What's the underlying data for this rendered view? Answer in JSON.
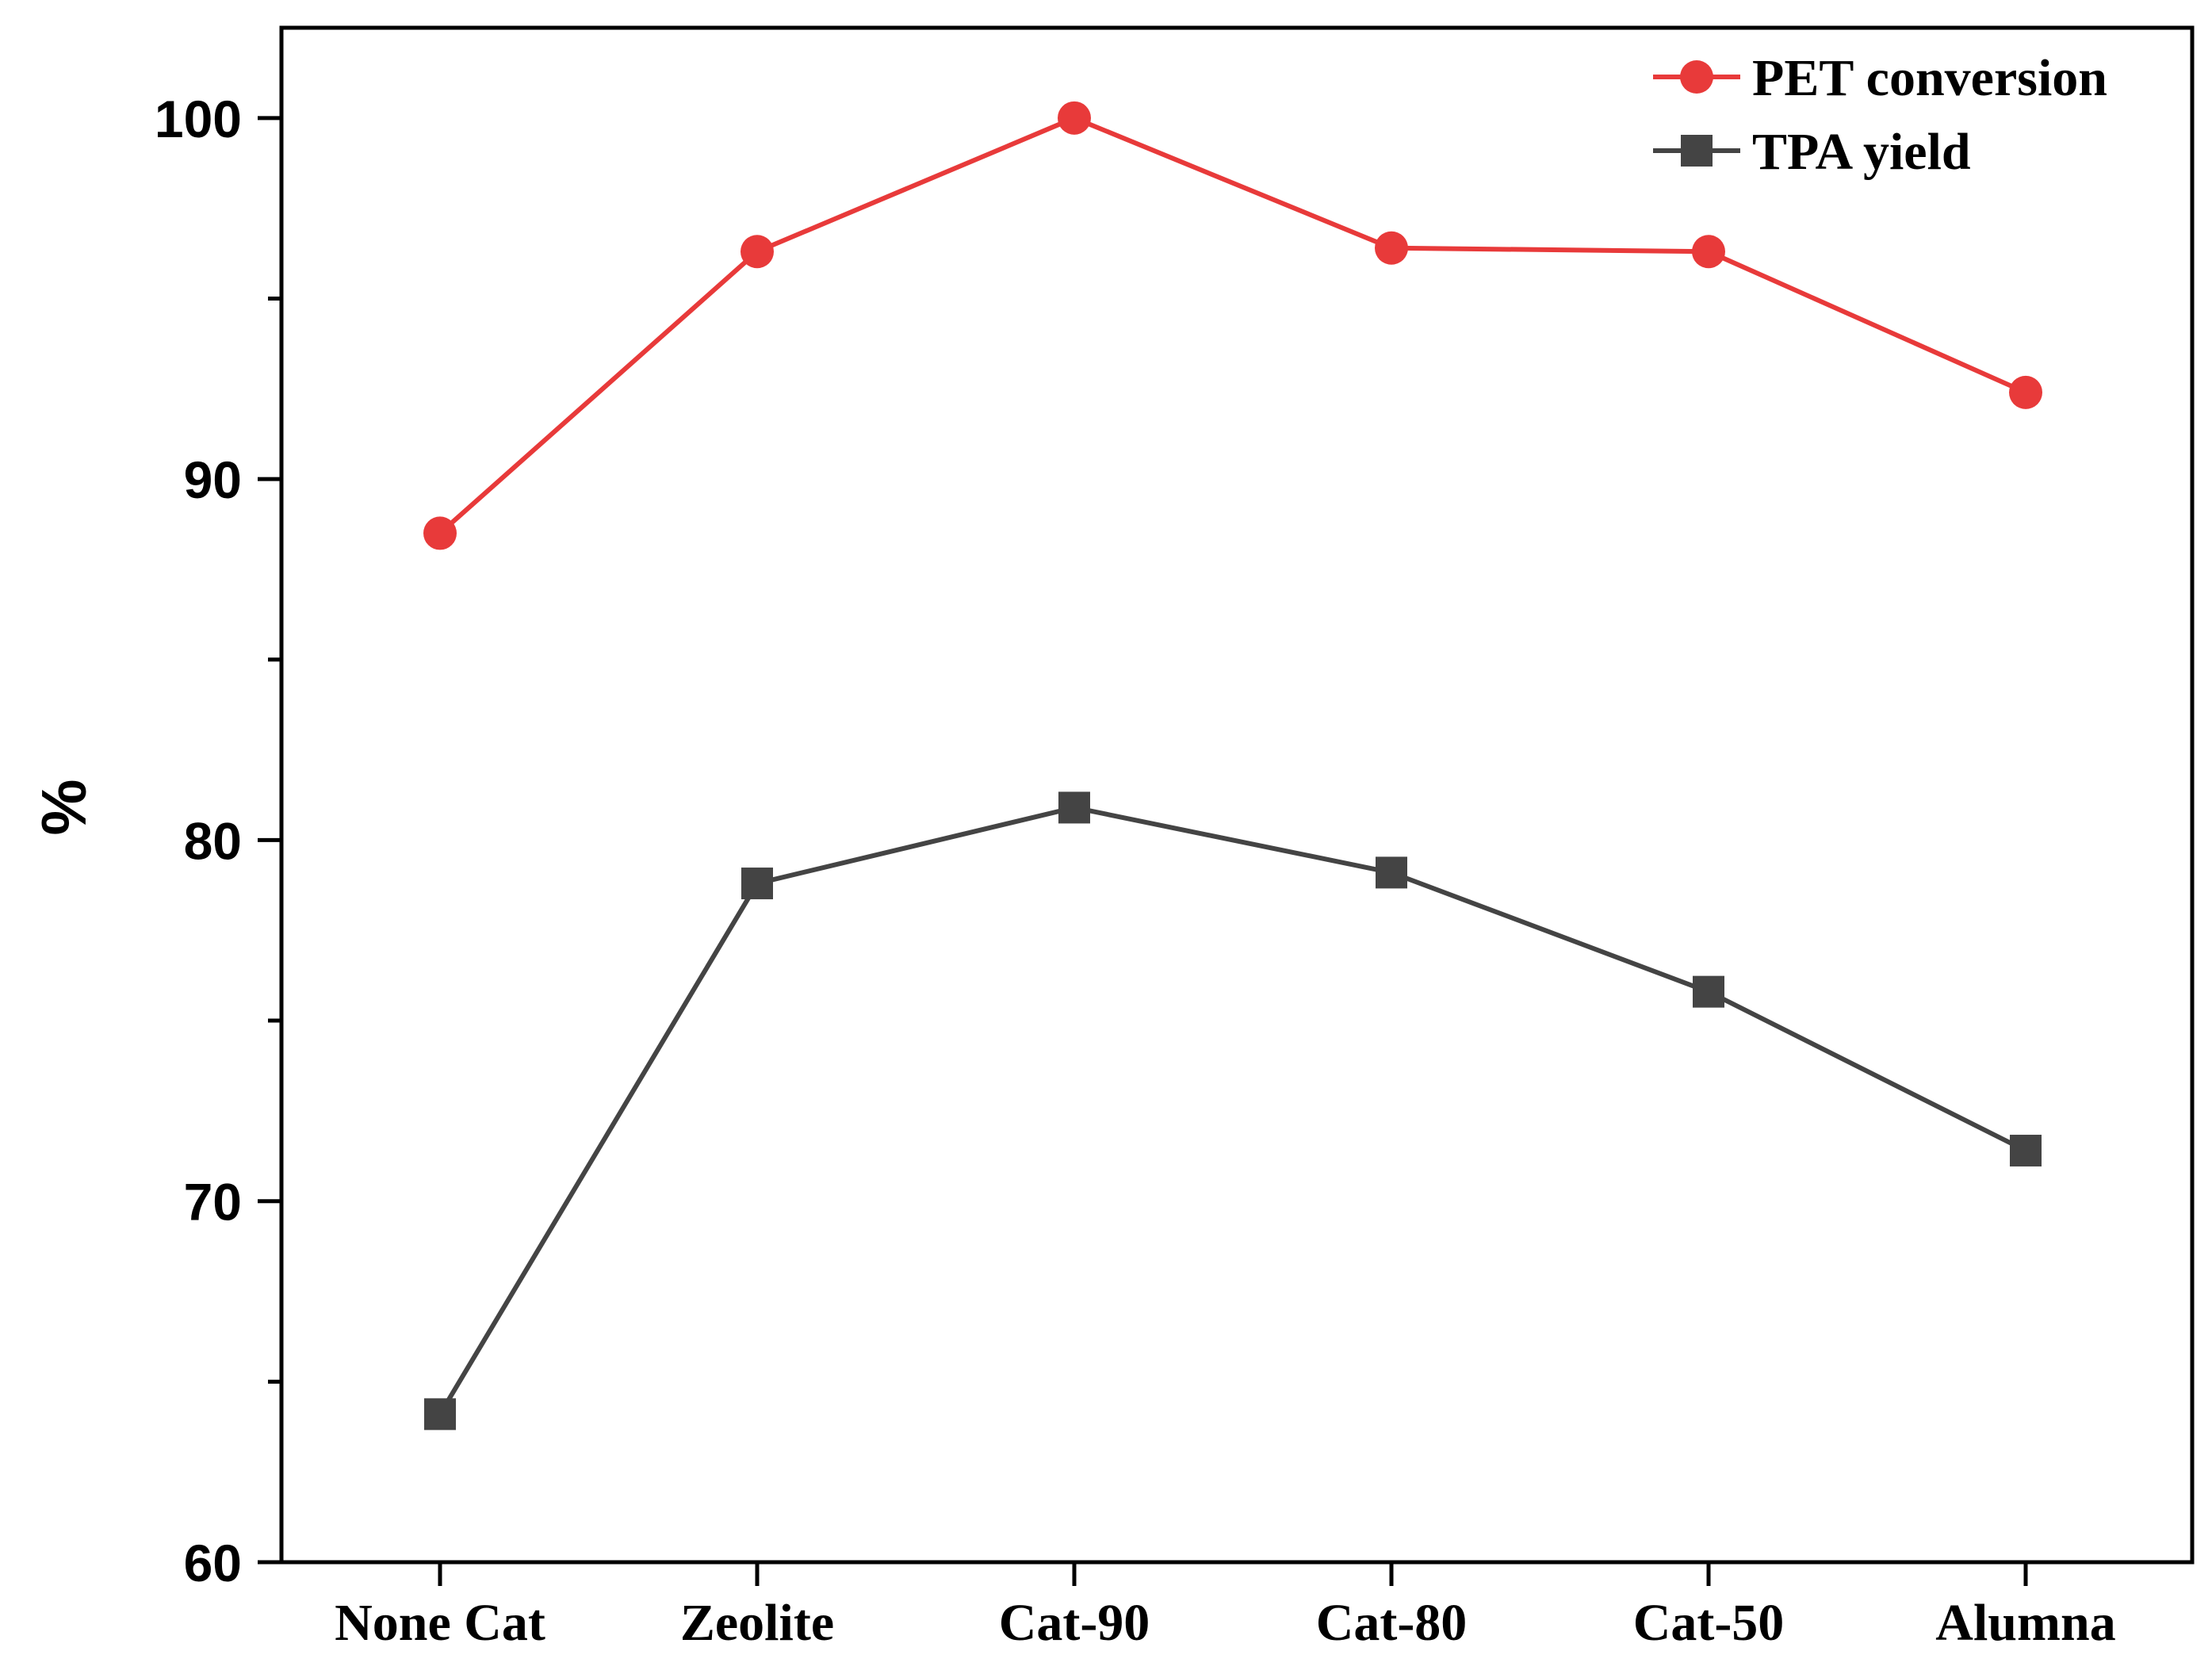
{
  "chart_data": {
    "type": "line",
    "title": "",
    "xlabel": "",
    "ylabel": "%",
    "categories": [
      "None Cat",
      "Zeolite",
      "Cat-90",
      "Cat-80",
      "Cat-50",
      "Alumna"
    ],
    "ylim": [
      60,
      102.5
    ],
    "yticks": [
      60,
      70,
      80,
      90,
      100
    ],
    "yticks_minor": [
      65,
      75,
      85,
      95
    ],
    "grid": false,
    "legend_position": "top-right",
    "series": [
      {
        "name": "PET conversion",
        "color": "#E83A3A",
        "marker": "circle",
        "values": [
          88.5,
          96.3,
          100.0,
          96.4,
          96.3,
          92.4
        ]
      },
      {
        "name": "TPA yield",
        "color": "#444444",
        "marker": "square",
        "values": [
          64.1,
          78.8,
          80.9,
          79.1,
          75.8,
          71.4
        ]
      }
    ]
  }
}
